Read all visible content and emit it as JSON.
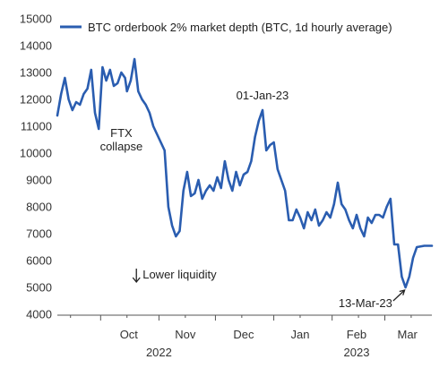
{
  "chart_data": {
    "type": "line",
    "title": "",
    "xlabel": "",
    "ylabel": "",
    "legend_position": "top",
    "grid": false,
    "ylim": [
      4000,
      15000
    ],
    "y_ticks": [
      4000,
      5000,
      6000,
      7000,
      8000,
      9000,
      10000,
      11000,
      12000,
      13000,
      14000,
      15000
    ],
    "x_range": [
      "2022-09-08",
      "2023-03-26"
    ],
    "x_ticks": [
      {
        "date": "2022-10-16",
        "label": "Oct"
      },
      {
        "date": "2022-11-15",
        "label": "Nov"
      },
      {
        "date": "2022-12-16",
        "label": "Dec"
      },
      {
        "date": "2023-01-15",
        "label": "Jan"
      },
      {
        "date": "2023-02-14",
        "label": "Feb"
      },
      {
        "date": "2023-03-13",
        "label": "Mar"
      }
    ],
    "year_labels": [
      {
        "date": "2022-11-01",
        "label": "2022"
      },
      {
        "date": "2023-02-14",
        "label": "2023"
      }
    ],
    "series": [
      {
        "name": "BTC orderbook 2% market depth (BTC, 1d hourly average)",
        "color": "#2a5db0",
        "points": [
          [
            "2022-09-08",
            11400
          ],
          [
            "2022-09-10",
            12200
          ],
          [
            "2022-09-12",
            12800
          ],
          [
            "2022-09-14",
            12000
          ],
          [
            "2022-09-16",
            11600
          ],
          [
            "2022-09-18",
            11900
          ],
          [
            "2022-09-20",
            11800
          ],
          [
            "2022-09-22",
            12200
          ],
          [
            "2022-09-24",
            12400
          ],
          [
            "2022-09-26",
            13100
          ],
          [
            "2022-09-28",
            11500
          ],
          [
            "2022-09-30",
            10900
          ],
          [
            "2022-10-02",
            13200
          ],
          [
            "2022-10-04",
            12700
          ],
          [
            "2022-10-06",
            13100
          ],
          [
            "2022-10-08",
            12500
          ],
          [
            "2022-10-10",
            12600
          ],
          [
            "2022-10-12",
            13000
          ],
          [
            "2022-10-14",
            12800
          ],
          [
            "2022-10-15",
            12300
          ],
          [
            "2022-10-17",
            12700
          ],
          [
            "2022-10-19",
            13500
          ],
          [
            "2022-10-21",
            12300
          ],
          [
            "2022-10-23",
            12000
          ],
          [
            "2022-10-25",
            11800
          ],
          [
            "2022-10-27",
            11500
          ],
          [
            "2022-10-29",
            11000
          ],
          [
            "2022-10-31",
            10700
          ],
          [
            "2022-11-02",
            10400
          ],
          [
            "2022-11-04",
            10100
          ],
          [
            "2022-11-06",
            8000
          ],
          [
            "2022-11-08",
            7300
          ],
          [
            "2022-11-10",
            6900
          ],
          [
            "2022-11-12",
            7100
          ],
          [
            "2022-11-14",
            8600
          ],
          [
            "2022-11-16",
            9300
          ],
          [
            "2022-11-18",
            8400
          ],
          [
            "2022-11-20",
            8500
          ],
          [
            "2022-11-22",
            9000
          ],
          [
            "2022-11-24",
            8300
          ],
          [
            "2022-11-26",
            8600
          ],
          [
            "2022-11-28",
            8800
          ],
          [
            "2022-11-30",
            8600
          ],
          [
            "2022-12-02",
            9100
          ],
          [
            "2022-12-04",
            8700
          ],
          [
            "2022-12-06",
            9700
          ],
          [
            "2022-12-08",
            9000
          ],
          [
            "2022-12-10",
            8600
          ],
          [
            "2022-12-12",
            9300
          ],
          [
            "2022-12-14",
            8800
          ],
          [
            "2022-12-16",
            9200
          ],
          [
            "2022-12-18",
            9300
          ],
          [
            "2022-12-20",
            9700
          ],
          [
            "2022-12-22",
            10600
          ],
          [
            "2022-12-24",
            11200
          ],
          [
            "2022-12-26",
            11600
          ],
          [
            "2022-12-28",
            10100
          ],
          [
            "2022-12-30",
            10300
          ],
          [
            "2023-01-01",
            10400
          ],
          [
            "2023-01-03",
            9400
          ],
          [
            "2023-01-05",
            9000
          ],
          [
            "2023-01-07",
            8600
          ],
          [
            "2023-01-09",
            7500
          ],
          [
            "2023-01-11",
            7500
          ],
          [
            "2023-01-13",
            7900
          ],
          [
            "2023-01-15",
            7600
          ],
          [
            "2023-01-17",
            7200
          ],
          [
            "2023-01-19",
            7800
          ],
          [
            "2023-01-21",
            7500
          ],
          [
            "2023-01-23",
            7900
          ],
          [
            "2023-01-25",
            7300
          ],
          [
            "2023-01-27",
            7500
          ],
          [
            "2023-01-29",
            7800
          ],
          [
            "2023-01-31",
            7600
          ],
          [
            "2023-02-02",
            8100
          ],
          [
            "2023-02-04",
            8900
          ],
          [
            "2023-02-06",
            8100
          ],
          [
            "2023-02-08",
            7900
          ],
          [
            "2023-02-10",
            7500
          ],
          [
            "2023-02-12",
            7200
          ],
          [
            "2023-02-14",
            7700
          ],
          [
            "2023-02-16",
            7200
          ],
          [
            "2023-02-18",
            6900
          ],
          [
            "2023-02-20",
            7600
          ],
          [
            "2023-02-22",
            7400
          ],
          [
            "2023-02-24",
            7700
          ],
          [
            "2023-02-26",
            7700
          ],
          [
            "2023-02-28",
            7600
          ],
          [
            "2023-03-02",
            8000
          ],
          [
            "2023-03-04",
            8300
          ],
          [
            "2023-03-06",
            6600
          ],
          [
            "2023-03-08",
            6600
          ],
          [
            "2023-03-10",
            5400
          ],
          [
            "2023-03-12",
            5000
          ],
          [
            "2023-03-14",
            5400
          ],
          [
            "2023-03-16",
            6100
          ],
          [
            "2023-03-18",
            6500
          ],
          [
            "2023-03-22",
            6550
          ],
          [
            "2023-03-26",
            6550
          ]
        ]
      }
    ],
    "annotations": [
      {
        "text": "FTX",
        "date": "2022-10-12",
        "value": 10600
      },
      {
        "text": "collapse",
        "date": "2022-10-12",
        "value": 10100
      },
      {
        "text": "01-Jan-23",
        "date": "2022-12-26",
        "value": 12000
      },
      {
        "text": "Lower liquidity",
        "date": "2022-10-20",
        "value": 5400,
        "arrow": "down"
      },
      {
        "text": "13-Mar-23",
        "date": "2023-03-05",
        "value": 4400,
        "arrow_to": [
          "2023-03-12",
          5000
        ]
      }
    ]
  }
}
